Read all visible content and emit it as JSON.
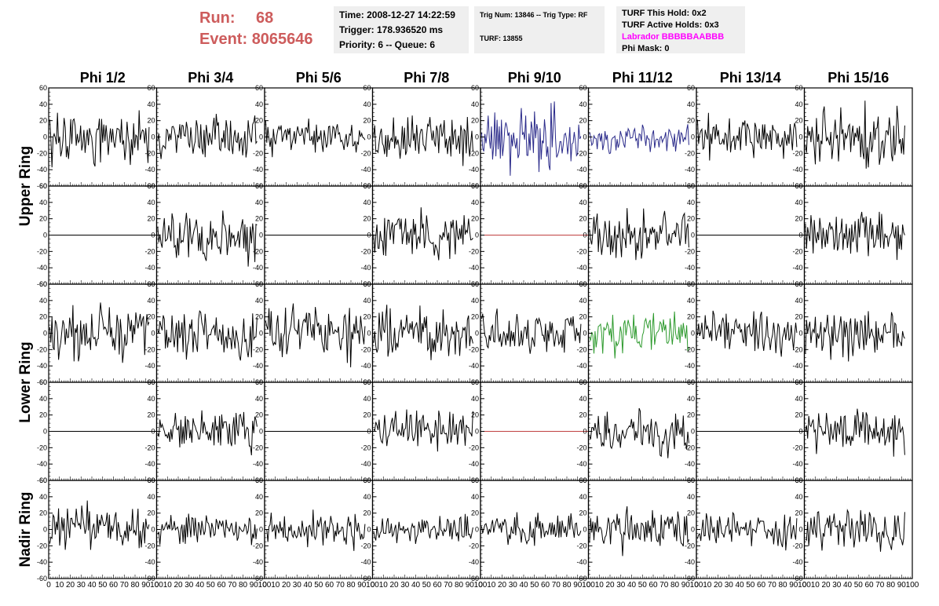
{
  "header": {
    "run_label": "Run:",
    "run_value": "68",
    "event_label": "Event:",
    "event_value": "8065646",
    "time": "Time: 2008-12-27 14:22:59",
    "trigger": "Trigger: 178.936520 ms",
    "priority": "Priority: 6 -- Queue: 6",
    "trig_num": "Trig Num: 13846 -- Trig Type: RF",
    "turf": "TURF: 13855",
    "turf_this_hold": "TURF This Hold: 0x2",
    "turf_active_holds": "TURF Active Holds: 0x3",
    "labrador": "Labrador BBBBBAABBB",
    "phi_mask": "Phi Mask: 0"
  },
  "colors": {
    "header_red": "#cd5c5c",
    "info_bg": "#efefef",
    "labrador_magenta": "#ff00ff",
    "trace_black": "#000000",
    "trace_blue": "#2a2a8a",
    "trace_green": "#2e9a2e",
    "trace_red": "#c04040"
  },
  "chart_data": {
    "type": "line",
    "columns": [
      "Phi 1/2",
      "Phi 3/4",
      "Phi 5/6",
      "Phi 7/8",
      "Phi 9/10",
      "Phi 11/12",
      "Phi 13/14",
      "Phi 15/16"
    ],
    "ring_labels": [
      "Upper Ring",
      "Lower Ring",
      "Nadir Ring"
    ],
    "xlim": [
      0,
      100
    ],
    "ylim": [
      -60,
      60
    ],
    "xticks": [
      "0",
      "10",
      "20",
      "30",
      "40",
      "50",
      "60",
      "70",
      "80",
      "90",
      "100"
    ],
    "yticks": [
      "60",
      "40",
      "20",
      "0",
      "-20",
      "-40",
      "-60"
    ],
    "samples": 90,
    "rows": [
      {
        "ring": "Upper Ring",
        "panels": [
          {
            "amp": 15,
            "color": "#000000",
            "seed": 11
          },
          {
            "amp": 12,
            "color": "#000000",
            "seed": 12
          },
          {
            "amp": 11,
            "color": "#000000",
            "seed": 13
          },
          {
            "amp": 14,
            "color": "#000000",
            "seed": 14
          },
          {
            "amp": 19,
            "color": "#2a2a8a",
            "seed": 15
          },
          {
            "amp": 8,
            "color": "#2a2a8a",
            "seed": 16
          },
          {
            "amp": 13,
            "color": "#000000",
            "seed": 17
          },
          {
            "amp": 17,
            "color": "#000000",
            "seed": 18
          }
        ]
      },
      {
        "ring": "Upper Ring",
        "panels": [
          {
            "amp": 0,
            "color": "#000000",
            "seed": 21
          },
          {
            "amp": 14,
            "color": "#000000",
            "seed": 22
          },
          {
            "amp": 0,
            "color": "#000000",
            "seed": 23
          },
          {
            "amp": 14,
            "color": "#000000",
            "seed": 24
          },
          {
            "amp": 0,
            "color": "#c04040",
            "seed": 25
          },
          {
            "amp": 14,
            "color": "#000000",
            "seed": 26
          },
          {
            "amp": 0,
            "color": "#000000",
            "seed": 27
          },
          {
            "amp": 15,
            "color": "#000000",
            "seed": 28
          }
        ]
      },
      {
        "ring": "Lower Ring",
        "panels": [
          {
            "amp": 15,
            "color": "#000000",
            "seed": 31
          },
          {
            "amp": 15,
            "color": "#000000",
            "seed": 32
          },
          {
            "amp": 16,
            "color": "#000000",
            "seed": 33
          },
          {
            "amp": 14,
            "color": "#000000",
            "seed": 34
          },
          {
            "amp": 13,
            "color": "#000000",
            "seed": 35
          },
          {
            "amp": 12,
            "color": "#2e9a2e",
            "seed": 36
          },
          {
            "amp": 13,
            "color": "#000000",
            "seed": 37
          },
          {
            "amp": 14,
            "color": "#000000",
            "seed": 38
          }
        ]
      },
      {
        "ring": "Lower Ring",
        "panels": [
          {
            "amp": 0,
            "color": "#000000",
            "seed": 41
          },
          {
            "amp": 11,
            "color": "#000000",
            "seed": 42
          },
          {
            "amp": 0,
            "color": "#000000",
            "seed": 43
          },
          {
            "amp": 12,
            "color": "#000000",
            "seed": 44
          },
          {
            "amp": 0,
            "color": "#c04040",
            "seed": 45
          },
          {
            "amp": 13,
            "color": "#000000",
            "seed": 46
          },
          {
            "amp": 0,
            "color": "#000000",
            "seed": 47
          },
          {
            "amp": 13,
            "color": "#000000",
            "seed": 48
          }
        ]
      },
      {
        "ring": "Nadir Ring",
        "panels": [
          {
            "amp": 13,
            "color": "#000000",
            "seed": 51
          },
          {
            "amp": 9,
            "color": "#000000",
            "seed": 52
          },
          {
            "amp": 10,
            "color": "#000000",
            "seed": 53
          },
          {
            "amp": 9,
            "color": "#000000",
            "seed": 54
          },
          {
            "amp": 9,
            "color": "#000000",
            "seed": 55
          },
          {
            "amp": 12,
            "color": "#000000",
            "seed": 56
          },
          {
            "amp": 10,
            "color": "#000000",
            "seed": 57
          },
          {
            "amp": 13,
            "color": "#000000",
            "seed": 58
          }
        ]
      }
    ]
  }
}
